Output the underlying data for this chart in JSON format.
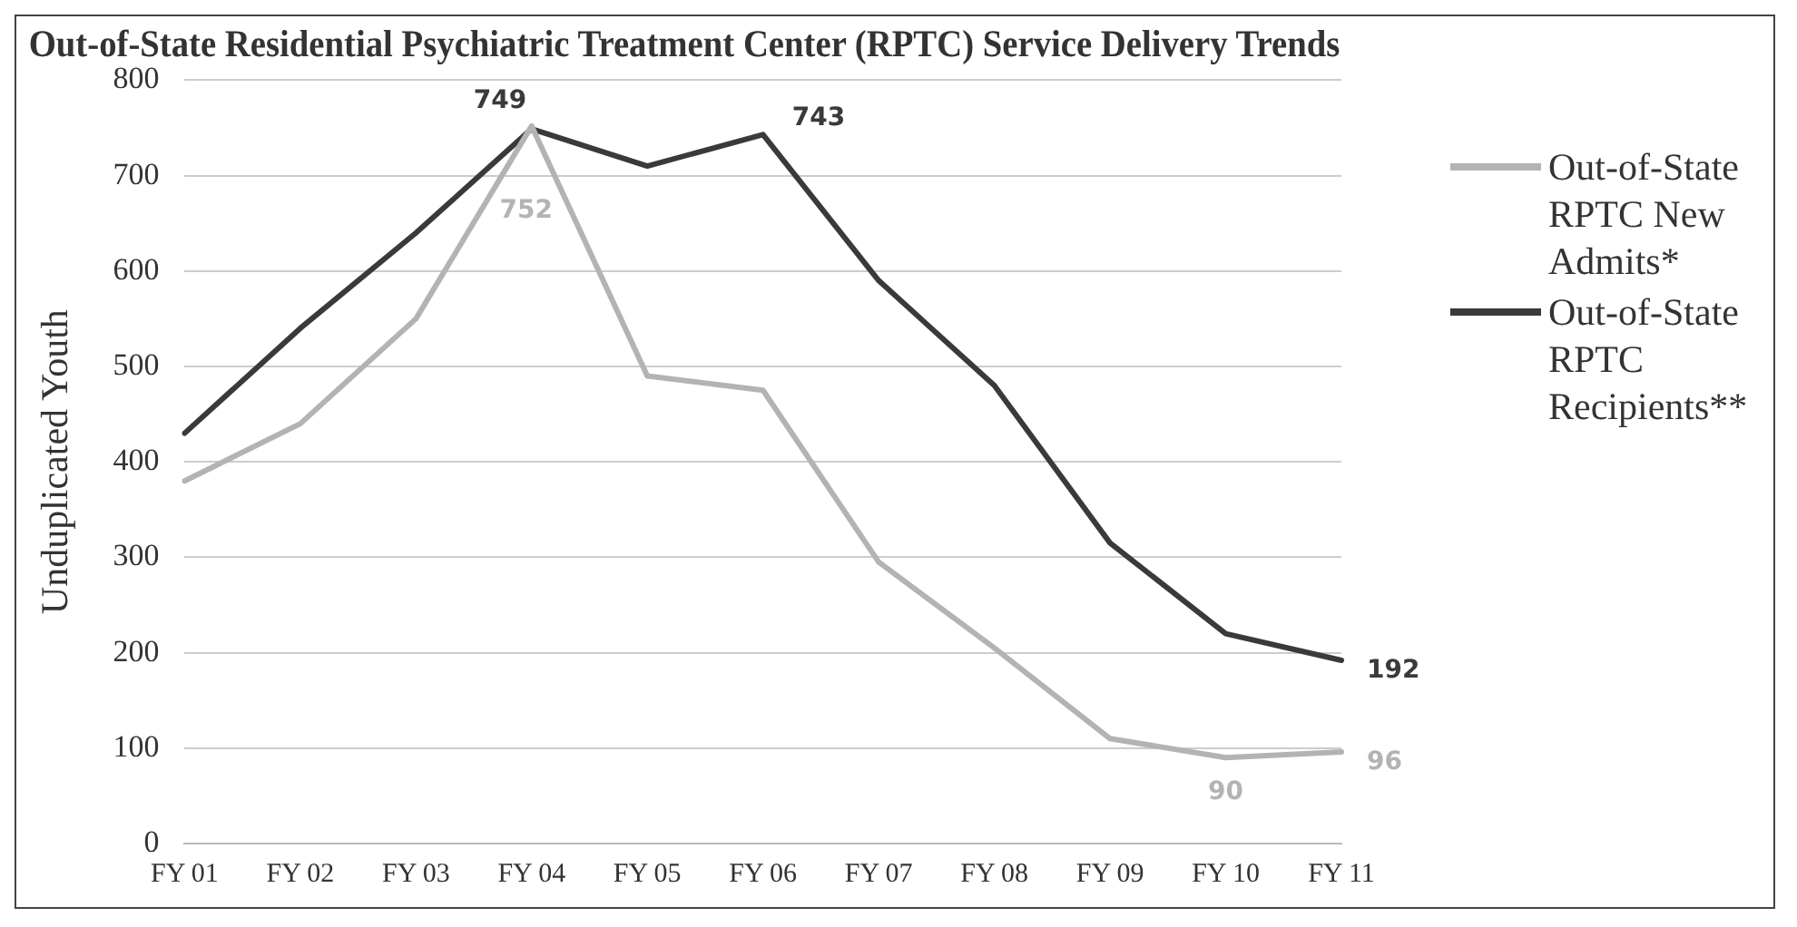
{
  "chart_data": {
    "type": "line",
    "title": "Out-of-State Residential Psychiatric Treatment Center (RPTC) Service Delivery Trends",
    "ylabel": "Unduplicated Youth",
    "categories": [
      "FY 01",
      "FY 02",
      "FY 03",
      "FY 04",
      "FY 05",
      "FY 06",
      "FY 07",
      "FY 08",
      "FY 09",
      "FY 10",
      "FY 11"
    ],
    "series": [
      {
        "name": "Out-of-State RPTC New Admits*",
        "color": "#b3b3b3",
        "values": [
          380,
          440,
          550,
          752,
          490,
          475,
          295,
          205,
          110,
          90,
          96
        ],
        "value_labels": [
          null,
          null,
          null,
          "752",
          null,
          null,
          null,
          null,
          null,
          "90",
          "96"
        ]
      },
      {
        "name": "Out-of-State RPTC Recipients**",
        "color": "#3a3a3a",
        "values": [
          430,
          540,
          640,
          749,
          710,
          743,
          590,
          480,
          315,
          220,
          192
        ],
        "value_labels": [
          null,
          null,
          null,
          "749",
          null,
          "743",
          null,
          null,
          null,
          null,
          "192"
        ]
      }
    ],
    "ylim": [
      0,
      800
    ],
    "yticks": [
      0,
      100,
      200,
      300,
      400,
      500,
      600,
      700,
      800
    ],
    "grid": "y",
    "legend": "right",
    "marker": "none"
  }
}
